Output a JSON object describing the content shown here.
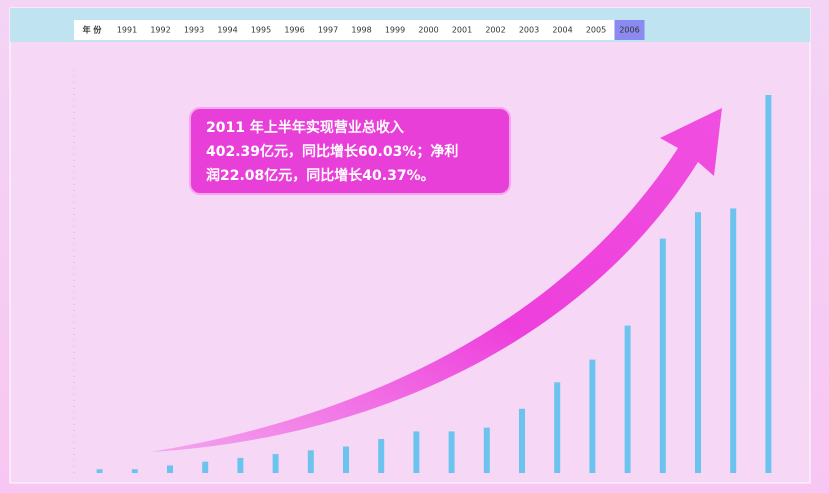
{
  "timeline": {
    "label": "年 份",
    "years": [
      "1991",
      "1992",
      "1993",
      "1994",
      "1995",
      "1996",
      "1997",
      "1998",
      "1999",
      "2000",
      "2001",
      "2002",
      "2003",
      "2004",
      "2005",
      "2006"
    ],
    "active": 15
  },
  "chart_data": {
    "type": "bar",
    "annotation": [
      "2011 年上半年实现营业总收入",
      "402.39亿元，同比增长60.03%；净利",
      "润22.08亿元，同比增长40.37%。"
    ],
    "categories": [
      null,
      null,
      null,
      null,
      null,
      null,
      null,
      null,
      null,
      null,
      null,
      null,
      null,
      null,
      null,
      null,
      null,
      null,
      null,
      null
    ],
    "values": [
      1,
      1,
      2,
      3,
      4,
      5,
      6,
      7,
      9,
      11,
      11,
      12,
      17,
      24,
      30,
      39,
      62,
      69,
      70,
      100
    ],
    "color": "#6cc4ee",
    "ylim": [
      0,
      100
    ]
  }
}
